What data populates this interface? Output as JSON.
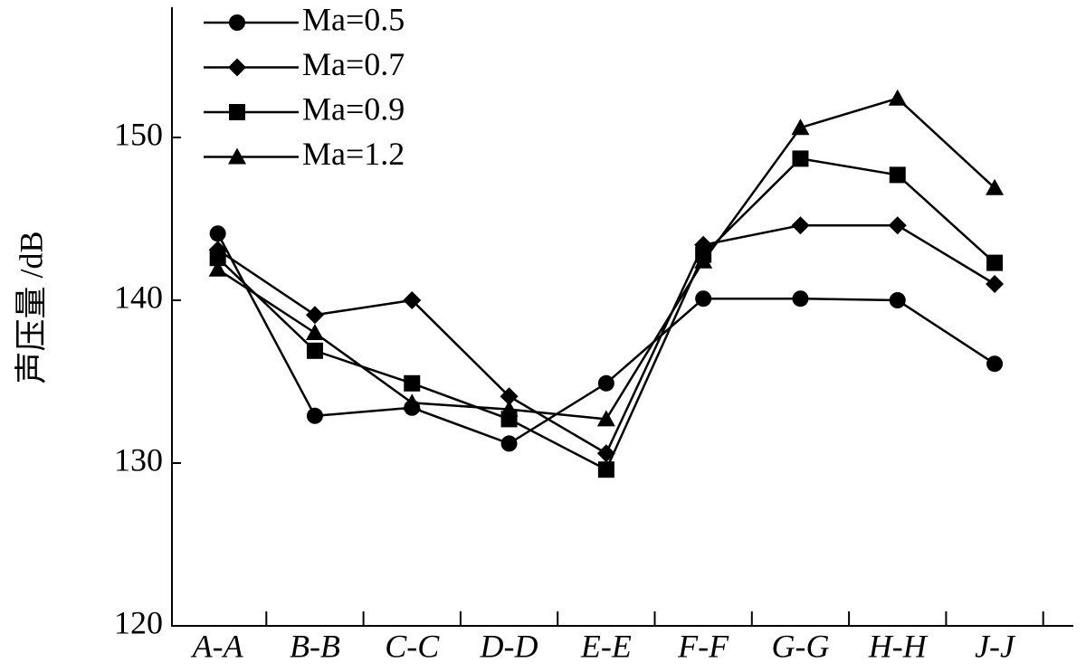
{
  "chart_data": {
    "type": "line",
    "y_label": "声压量 /dB",
    "categories": [
      "A-A",
      "B-B",
      "C-C",
      "D-D",
      "E-E",
      "F-F",
      "G-G",
      "H-H",
      "J-J"
    ],
    "series": [
      {
        "name": "Ma=0.5",
        "color": "#000000",
        "marker": "circle",
        "values": [
          144.1,
          132.9,
          133.4,
          131.2,
          134.9,
          140.1,
          140.1,
          140.0,
          136.1
        ]
      },
      {
        "name": "Ma=0.7",
        "color": "#000000",
        "marker": "diamond",
        "values": [
          143.1,
          139.1,
          140.0,
          134.1,
          130.6,
          143.4,
          144.6,
          144.6,
          141.0
        ]
      },
      {
        "name": "Ma=0.9",
        "color": "#000000",
        "marker": "square",
        "values": [
          142.6,
          136.9,
          134.9,
          132.7,
          129.6,
          142.8,
          148.7,
          147.7,
          142.3
        ]
      },
      {
        "name": "Ma=1.2",
        "color": "#000000",
        "marker": "triangle",
        "values": [
          141.9,
          138.0,
          133.7,
          133.3,
          132.7,
          142.4,
          150.6,
          152.4,
          146.9
        ]
      }
    ],
    "ylim": [
      120,
      158
    ],
    "yticks": [
      120,
      130,
      140,
      150
    ],
    "legend": "upper left"
  }
}
